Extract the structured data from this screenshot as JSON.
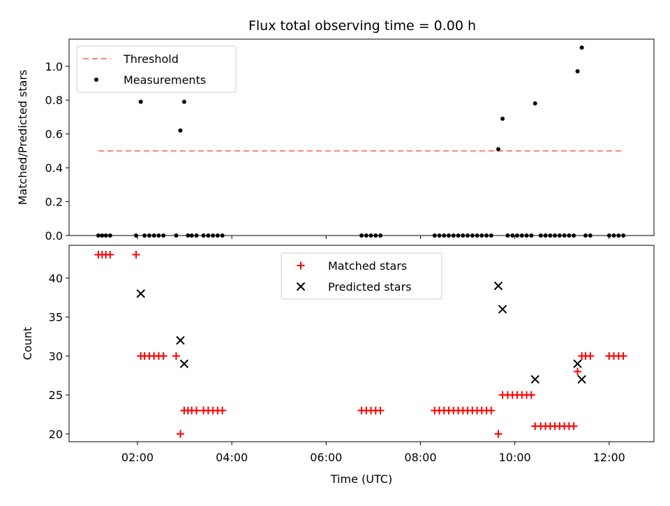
{
  "chart_data": [
    {
      "type": "scatter",
      "title": "Flux total observing time = 0.00 h",
      "xlabel": "",
      "ylabel": "Matched/Predicted stars",
      "xlim": [
        0.55,
        12.95
      ],
      "ylim": [
        0.0,
        1.16
      ],
      "yticks": [
        0.0,
        0.2,
        0.4,
        0.6,
        0.8,
        1.0
      ],
      "ytick_labels": [
        "0.0",
        "0.2",
        "0.4",
        "0.6",
        "0.8",
        "1.0"
      ],
      "xticks": [
        2,
        4,
        6,
        8,
        10,
        12
      ],
      "show_xtick_labels": false,
      "grid": false,
      "legend_placement": "upper-left",
      "series": [
        {
          "name": "Threshold",
          "kind": "line",
          "style": "dashed",
          "color": "#ff7f7f",
          "x": [
            1.17,
            12.27
          ],
          "y": [
            0.5,
            0.5
          ]
        },
        {
          "name": "Measurements",
          "kind": "points",
          "color": "#000000",
          "x": [
            1.17,
            1.25,
            1.33,
            1.42,
            1.97,
            2.07,
            2.15,
            2.25,
            2.35,
            2.45,
            2.55,
            2.82,
            2.91,
            2.99,
            3.07,
            3.15,
            3.25,
            3.4,
            3.5,
            3.6,
            3.7,
            3.8,
            6.75,
            6.85,
            6.95,
            7.05,
            7.15,
            8.3,
            8.4,
            8.5,
            8.6,
            8.7,
            8.8,
            8.9,
            9.0,
            9.1,
            9.2,
            9.3,
            9.4,
            9.5,
            9.65,
            9.74,
            9.85,
            9.95,
            10.05,
            10.15,
            10.25,
            10.35,
            10.43,
            10.55,
            10.65,
            10.75,
            10.85,
            10.95,
            11.05,
            11.15,
            11.25,
            11.33,
            11.42,
            11.5,
            11.6,
            12.0,
            12.1,
            12.2,
            12.3
          ],
          "y": [
            0,
            0,
            0,
            0,
            0,
            0.79,
            0,
            0,
            0,
            0,
            0,
            0,
            0.62,
            0.79,
            0,
            0,
            0,
            0,
            0,
            0,
            0,
            0,
            0,
            0,
            0,
            0,
            0,
            0,
            0,
            0,
            0,
            0,
            0,
            0,
            0,
            0,
            0,
            0,
            0,
            0,
            0.51,
            0.69,
            0,
            0,
            0,
            0,
            0,
            0,
            0.78,
            0,
            0,
            0,
            0,
            0,
            0,
            0,
            0,
            0.97,
            1.11,
            0,
            0,
            0,
            0,
            0,
            0
          ]
        }
      ]
    },
    {
      "type": "scatter",
      "title": "",
      "xlabel": "Time (UTC)",
      "ylabel": "Count",
      "xlim": [
        0.55,
        12.95
      ],
      "ylim": [
        19,
        44.2
      ],
      "yticks": [
        20,
        25,
        30,
        35,
        40
      ],
      "ytick_labels": [
        "20",
        "25",
        "30",
        "35",
        "40"
      ],
      "xticks": [
        2,
        4,
        6,
        8,
        10,
        12
      ],
      "xtick_labels": [
        "02:00",
        "04:00",
        "06:00",
        "08:00",
        "10:00",
        "12:00"
      ],
      "show_xtick_labels": true,
      "grid": false,
      "legend_placement": "upper-center",
      "series": [
        {
          "name": "Matched stars",
          "marker": "plus",
          "color": "#ff0000",
          "x": [
            1.17,
            1.25,
            1.33,
            1.42,
            1.97,
            2.07,
            2.15,
            2.25,
            2.35,
            2.45,
            2.55,
            2.82,
            2.91,
            2.99,
            3.07,
            3.15,
            3.25,
            3.4,
            3.5,
            3.6,
            3.7,
            3.8,
            6.75,
            6.85,
            6.95,
            7.05,
            7.15,
            8.3,
            8.4,
            8.5,
            8.6,
            8.7,
            8.8,
            8.9,
            9.0,
            9.1,
            9.2,
            9.3,
            9.4,
            9.5,
            9.65,
            9.74,
            9.85,
            9.95,
            10.05,
            10.15,
            10.25,
            10.35,
            10.43,
            10.55,
            10.65,
            10.75,
            10.85,
            10.95,
            11.05,
            11.15,
            11.25,
            11.33,
            11.42,
            11.5,
            11.6,
            12.0,
            12.1,
            12.2,
            12.3
          ],
          "y": [
            43,
            43,
            43,
            43,
            43,
            30,
            30,
            30,
            30,
            30,
            30,
            30,
            20,
            23,
            23,
            23,
            23,
            23,
            23,
            23,
            23,
            23,
            23,
            23,
            23,
            23,
            23,
            23,
            23,
            23,
            23,
            23,
            23,
            23,
            23,
            23,
            23,
            23,
            23,
            23,
            20,
            25,
            25,
            25,
            25,
            25,
            25,
            25,
            21,
            21,
            21,
            21,
            21,
            21,
            21,
            21,
            21,
            28,
            30,
            30,
            30,
            30,
            30,
            30,
            30
          ]
        },
        {
          "name": "Predicted stars",
          "marker": "x",
          "color": "#000000",
          "x": [
            2.07,
            2.91,
            2.99,
            9.65,
            9.74,
            10.43,
            11.33,
            11.42
          ],
          "y": [
            38,
            32,
            29,
            39,
            36,
            27,
            29,
            27
          ]
        }
      ]
    }
  ]
}
